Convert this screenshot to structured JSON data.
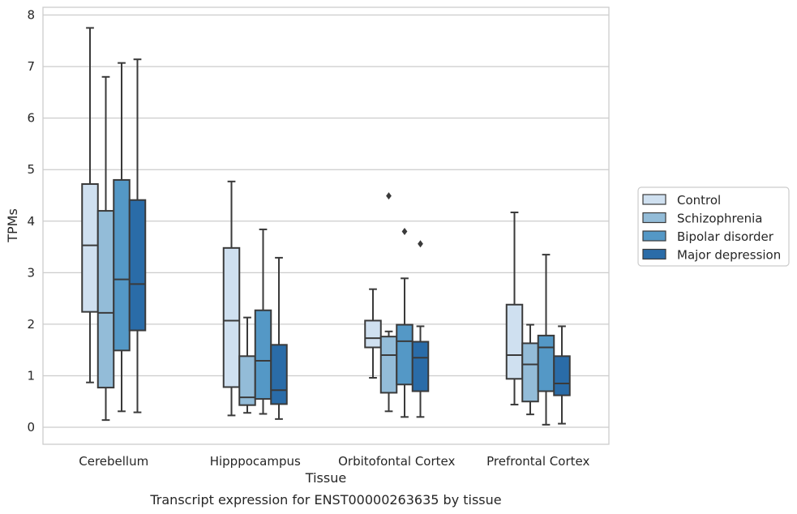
{
  "caption": "Transcript expression for ENST00000263635 by tissue",
  "chart_data": {
    "type": "box",
    "xlabel": "Tissue",
    "ylabel": "TPMs",
    "ylim": [
      -0.33,
      8.15
    ],
    "yticks": [
      0,
      1,
      2,
      3,
      4,
      5,
      6,
      7,
      8
    ],
    "grid": "horizontal",
    "legend_position": "right",
    "categories": [
      "Cerebellum",
      "Hipppocampus",
      "Orbitofontal Cortex",
      "Prefrontal Cortex"
    ],
    "series": [
      {
        "name": "Control",
        "color": "#cfe0f0",
        "boxes": [
          {
            "whisker_low": 0.87,
            "q1": 2.24,
            "median": 3.53,
            "q3": 4.72,
            "whisker_high": 7.75,
            "outliers": []
          },
          {
            "whisker_low": 0.23,
            "q1": 0.78,
            "median": 2.07,
            "q3": 3.48,
            "whisker_high": 4.77,
            "outliers": []
          },
          {
            "whisker_low": 0.96,
            "q1": 1.55,
            "median": 1.73,
            "q3": 2.07,
            "whisker_high": 2.68,
            "outliers": []
          },
          {
            "whisker_low": 0.44,
            "q1": 0.94,
            "median": 1.4,
            "q3": 2.38,
            "whisker_high": 4.17,
            "outliers": []
          }
        ]
      },
      {
        "name": "Schizophrenia",
        "color": "#93bcd8",
        "boxes": [
          {
            "whisker_low": 0.14,
            "q1": 0.77,
            "median": 2.22,
            "q3": 4.2,
            "whisker_high": 6.8,
            "outliers": []
          },
          {
            "whisker_low": 0.28,
            "q1": 0.43,
            "median": 0.58,
            "q3": 1.38,
            "whisker_high": 2.13,
            "outliers": []
          },
          {
            "whisker_low": 0.31,
            "q1": 0.67,
            "median": 1.4,
            "q3": 1.76,
            "whisker_high": 1.86,
            "outliers": [
              4.49
            ]
          },
          {
            "whisker_low": 0.25,
            "q1": 0.5,
            "median": 1.22,
            "q3": 1.63,
            "whisker_high": 1.99,
            "outliers": []
          }
        ]
      },
      {
        "name": "Bipolar disorder",
        "color": "#5498c6",
        "boxes": [
          {
            "whisker_low": 0.31,
            "q1": 1.49,
            "median": 2.87,
            "q3": 4.8,
            "whisker_high": 7.07,
            "outliers": []
          },
          {
            "whisker_low": 0.26,
            "q1": 0.55,
            "median": 1.29,
            "q3": 2.27,
            "whisker_high": 3.84,
            "outliers": []
          },
          {
            "whisker_low": 0.2,
            "q1": 0.83,
            "median": 1.67,
            "q3": 1.99,
            "whisker_high": 2.89,
            "outliers": [
              3.8
            ]
          },
          {
            "whisker_low": 0.05,
            "q1": 0.7,
            "median": 1.55,
            "q3": 1.78,
            "whisker_high": 3.35,
            "outliers": []
          }
        ]
      },
      {
        "name": "Major depression",
        "color": "#2a6ca8",
        "boxes": [
          {
            "whisker_low": 0.29,
            "q1": 1.88,
            "median": 2.78,
            "q3": 4.41,
            "whisker_high": 7.14,
            "outliers": []
          },
          {
            "whisker_low": 0.16,
            "q1": 0.45,
            "median": 0.72,
            "q3": 1.6,
            "whisker_high": 3.29,
            "outliers": []
          },
          {
            "whisker_low": 0.2,
            "q1": 0.7,
            "median": 1.35,
            "q3": 1.66,
            "whisker_high": 1.96,
            "outliers": [
              3.56
            ]
          },
          {
            "whisker_low": 0.07,
            "q1": 0.62,
            "median": 0.85,
            "q3": 1.38,
            "whisker_high": 1.96,
            "outliers": []
          }
        ]
      }
    ]
  }
}
